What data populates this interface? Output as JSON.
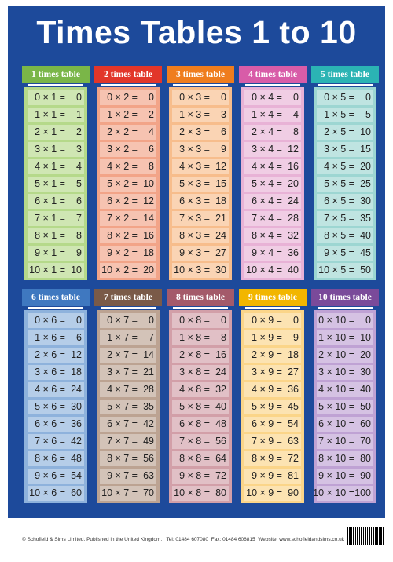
{
  "title": "Times Tables 1 to 10",
  "tables": [
    {
      "header": "1 times table",
      "rows": [
        [
          "0 × 1 =",
          0
        ],
        [
          "1 × 1 =",
          1
        ],
        [
          "2 × 1 =",
          2
        ],
        [
          "3 × 1 =",
          3
        ],
        [
          "4 × 1 =",
          4
        ],
        [
          "5 × 1 =",
          5
        ],
        [
          "6 × 1 =",
          6
        ],
        [
          "7 × 1 =",
          7
        ],
        [
          "8 × 1 =",
          8
        ],
        [
          "9 × 1 =",
          9
        ],
        [
          "10 × 1 =",
          10
        ]
      ]
    },
    {
      "header": "2 times table",
      "rows": [
        [
          "0 × 2 =",
          0
        ],
        [
          "1 × 2 =",
          2
        ],
        [
          "2 × 2 =",
          4
        ],
        [
          "3 × 2 =",
          6
        ],
        [
          "4 × 2 =",
          8
        ],
        [
          "5 × 2 =",
          10
        ],
        [
          "6 × 2 =",
          12
        ],
        [
          "7 × 2 =",
          14
        ],
        [
          "8 × 2 =",
          16
        ],
        [
          "9 × 2 =",
          18
        ],
        [
          "10 × 2 =",
          20
        ]
      ]
    },
    {
      "header": "3 times table",
      "rows": [
        [
          "0 × 3 =",
          0
        ],
        [
          "1 × 3 =",
          3
        ],
        [
          "2 × 3 =",
          6
        ],
        [
          "3 × 3 =",
          9
        ],
        [
          "4 × 3 =",
          12
        ],
        [
          "5 × 3 =",
          15
        ],
        [
          "6 × 3 =",
          18
        ],
        [
          "7 × 3 =",
          21
        ],
        [
          "8 × 3 =",
          24
        ],
        [
          "9 × 3 =",
          27
        ],
        [
          "10 × 3 =",
          30
        ]
      ]
    },
    {
      "header": "4 times table",
      "rows": [
        [
          "0 × 4 =",
          0
        ],
        [
          "1 × 4 =",
          4
        ],
        [
          "2 × 4 =",
          8
        ],
        [
          "3 × 4 =",
          12
        ],
        [
          "4 × 4 =",
          16
        ],
        [
          "5 × 4 =",
          20
        ],
        [
          "6 × 4 =",
          24
        ],
        [
          "7 × 4 =",
          28
        ],
        [
          "8 × 4 =",
          32
        ],
        [
          "9 × 4 =",
          36
        ],
        [
          "10 × 4 =",
          40
        ]
      ]
    },
    {
      "header": "5 times table",
      "rows": [
        [
          "0 × 5 =",
          0
        ],
        [
          "1 × 5 =",
          5
        ],
        [
          "2 × 5 =",
          10
        ],
        [
          "3 × 5 =",
          15
        ],
        [
          "4 × 5 =",
          20
        ],
        [
          "5 × 5 =",
          25
        ],
        [
          "6 × 5 =",
          30
        ],
        [
          "7 × 5 =",
          35
        ],
        [
          "8 × 5 =",
          40
        ],
        [
          "9 × 5 =",
          45
        ],
        [
          "10 × 5 =",
          50
        ]
      ]
    },
    {
      "header": "6 times table",
      "rows": [
        [
          "0 × 6 =",
          0
        ],
        [
          "1 × 6 =",
          6
        ],
        [
          "2 × 6 =",
          12
        ],
        [
          "3 × 6 =",
          18
        ],
        [
          "4 × 6 =",
          24
        ],
        [
          "5 × 6 =",
          30
        ],
        [
          "6 × 6 =",
          36
        ],
        [
          "7 × 6 =",
          42
        ],
        [
          "8 × 6 =",
          48
        ],
        [
          "9 × 6 =",
          54
        ],
        [
          "10 × 6 =",
          60
        ]
      ]
    },
    {
      "header": "7 times table",
      "rows": [
        [
          "0 × 7 =",
          0
        ],
        [
          "1 × 7 =",
          7
        ],
        [
          "2 × 7 =",
          14
        ],
        [
          "3 × 7 =",
          21
        ],
        [
          "4 × 7 =",
          28
        ],
        [
          "5 × 7 =",
          35
        ],
        [
          "6 × 7 =",
          42
        ],
        [
          "7 × 7 =",
          49
        ],
        [
          "8 × 7 =",
          56
        ],
        [
          "9 × 7 =",
          63
        ],
        [
          "10 × 7 =",
          70
        ]
      ]
    },
    {
      "header": "8 times table",
      "rows": [
        [
          "0 × 8 =",
          0
        ],
        [
          "1 × 8 =",
          8
        ],
        [
          "2 × 8 =",
          16
        ],
        [
          "3 × 8 =",
          24
        ],
        [
          "4 × 8 =",
          32
        ],
        [
          "5 × 8 =",
          40
        ],
        [
          "6 × 8 =",
          48
        ],
        [
          "7 × 8 =",
          56
        ],
        [
          "8 × 8 =",
          64
        ],
        [
          "9 × 8 =",
          72
        ],
        [
          "10 × 8 =",
          80
        ]
      ]
    },
    {
      "header": "9 times table",
      "rows": [
        [
          "0 × 9 =",
          0
        ],
        [
          "1 × 9 =",
          9
        ],
        [
          "2 × 9 =",
          18
        ],
        [
          "3 × 9 =",
          27
        ],
        [
          "4 × 9 =",
          36
        ],
        [
          "5 × 9 =",
          45
        ],
        [
          "6 × 9 =",
          54
        ],
        [
          "7 × 9 =",
          63
        ],
        [
          "8 × 9 =",
          72
        ],
        [
          "9 × 9 =",
          81
        ],
        [
          "10 × 9 =",
          90
        ]
      ]
    },
    {
      "header": "10 times table",
      "rows": [
        [
          "0 × 10 =",
          0
        ],
        [
          "1 × 10 =",
          10
        ],
        [
          "2 × 10 =",
          20
        ],
        [
          "3 × 10 =",
          30
        ],
        [
          "4 × 10 =",
          40
        ],
        [
          "5 × 10 =",
          50
        ],
        [
          "6 × 10 =",
          60
        ],
        [
          "7 × 10 =",
          70
        ],
        [
          "8 × 10 =",
          80
        ],
        [
          "9 × 10 =",
          90
        ],
        [
          "10 × 10 =",
          100
        ]
      ]
    }
  ],
  "footer": "© Schofield & Sims Limited. Published in the United Kingdom.   Tel: 01484 607080  Fax: 01484 606815  Website: www.schofieldandsims.co.uk"
}
